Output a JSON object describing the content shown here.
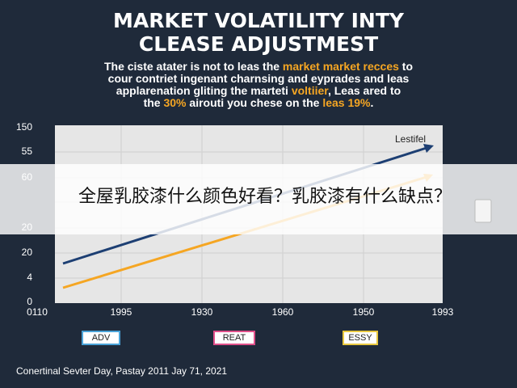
{
  "title": [
    "MARKET VOLATILITY INTY",
    "CLEASE ADJUSTMEST"
  ],
  "paragraph": [
    [
      "The ciste atater is not to leas the ",
      "market market recces",
      " to"
    ],
    [
      "cour contriet ingenant charnsing and eyprades and leas"
    ],
    [
      "applarenation gliting the marteti ",
      "voltiier",
      ", Leas ared to"
    ],
    [
      "the ",
      "30%",
      " airouti you chese on the ",
      "leas 19%",
      "."
    ]
  ],
  "chart": {
    "y_labels": [
      "150",
      "55",
      "60",
      "20",
      "20",
      "4",
      "0"
    ],
    "x_labels": [
      "0110",
      "1995",
      "1930",
      "1960",
      "1950",
      "1993"
    ],
    "annotation": "Lestifel",
    "legend": [
      "ADV",
      "REAT",
      "ESSY"
    ]
  },
  "footer": "Conertinal Sevter Day, Pastay 2011 Jay 71, 2021",
  "banner": "全屋乳胶漆什么颜色好看？乳胶漆有什么缺点？"
}
